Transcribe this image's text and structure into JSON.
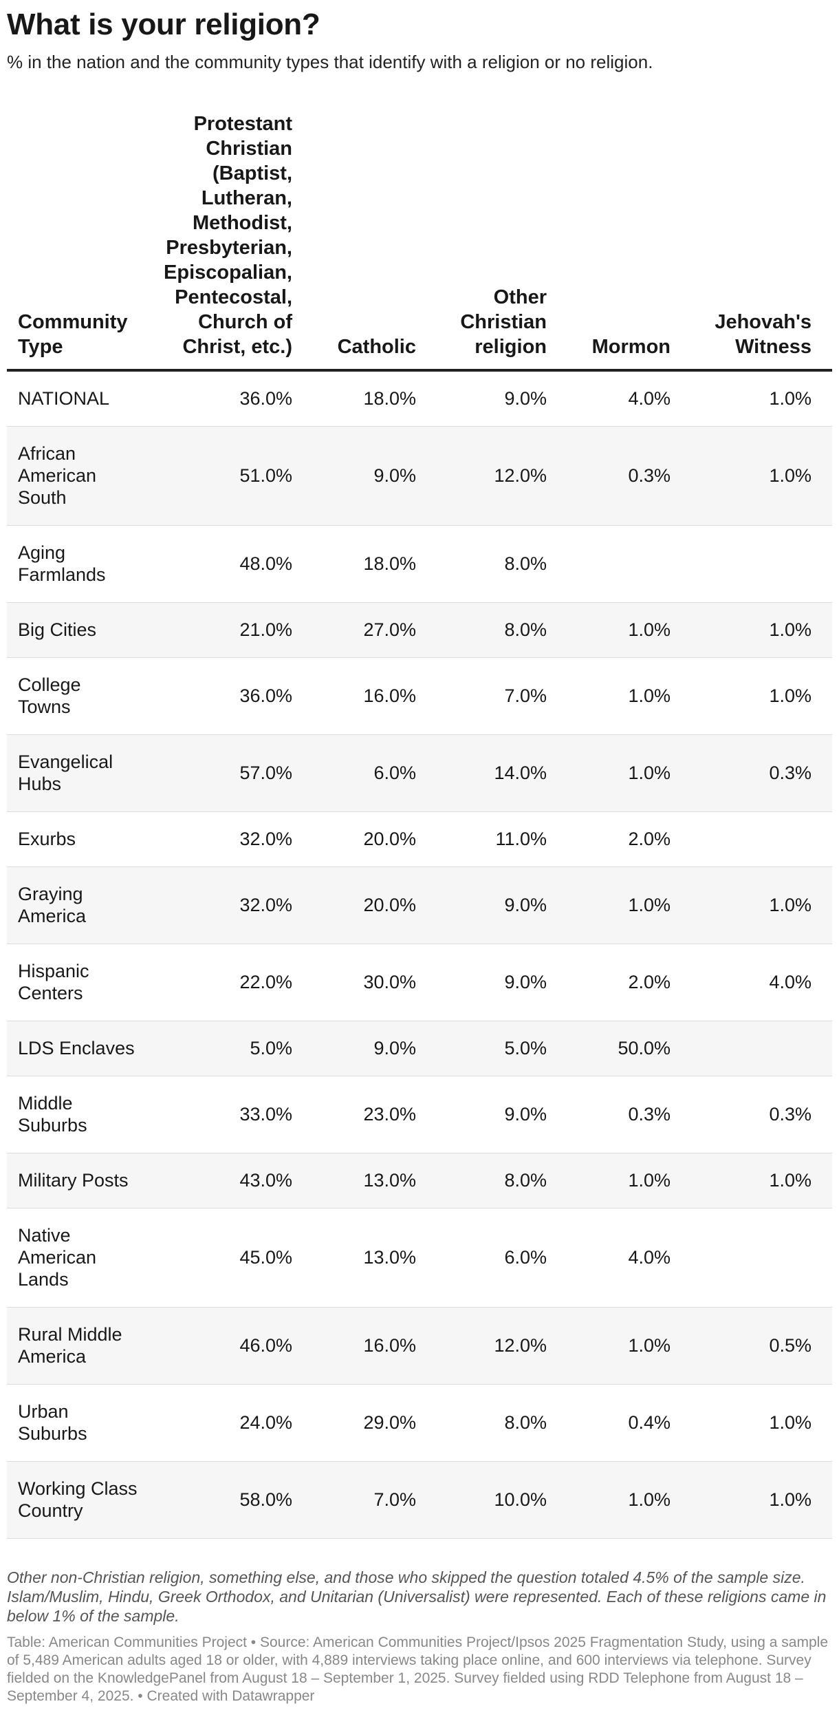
{
  "title": "What is your religion?",
  "subtitle": "% in the nation and the community types that identify with a religion or no religion.",
  "chart_data": {
    "type": "table",
    "columns": [
      "Community Type",
      "Protestant Christian (Baptist, Lutheran, Methodist, Presbyterian, Episcopalian, Pentecostal, Church of Christ, etc.)",
      "Catholic",
      "Other Christian religion",
      "Mormon",
      "Jehovah's Witness"
    ],
    "rows": [
      [
        "NATIONAL",
        "36.0%",
        "18.0%",
        "9.0%",
        "4.0%",
        "1.0%"
      ],
      [
        "African American South",
        "51.0%",
        "9.0%",
        "12.0%",
        "0.3%",
        "1.0%"
      ],
      [
        "Aging Farmlands",
        "48.0%",
        "18.0%",
        "8.0%",
        "",
        ""
      ],
      [
        "Big Cities",
        "21.0%",
        "27.0%",
        "8.0%",
        "1.0%",
        "1.0%"
      ],
      [
        "College Towns",
        "36.0%",
        "16.0%",
        "7.0%",
        "1.0%",
        "1.0%"
      ],
      [
        "Evangelical Hubs",
        "57.0%",
        "6.0%",
        "14.0%",
        "1.0%",
        "0.3%"
      ],
      [
        "Exurbs",
        "32.0%",
        "20.0%",
        "11.0%",
        "2.0%",
        ""
      ],
      [
        "Graying America",
        "32.0%",
        "20.0%",
        "9.0%",
        "1.0%",
        "1.0%"
      ],
      [
        "Hispanic Centers",
        "22.0%",
        "30.0%",
        "9.0%",
        "2.0%",
        "4.0%"
      ],
      [
        "LDS Enclaves",
        "5.0%",
        "9.0%",
        "5.0%",
        "50.0%",
        ""
      ],
      [
        "Middle Suburbs",
        "33.0%",
        "23.0%",
        "9.0%",
        "0.3%",
        "0.3%"
      ],
      [
        "Military Posts",
        "43.0%",
        "13.0%",
        "8.0%",
        "1.0%",
        "1.0%"
      ],
      [
        "Native American Lands",
        "45.0%",
        "13.0%",
        "6.0%",
        "4.0%",
        ""
      ],
      [
        "Rural Middle America",
        "46.0%",
        "16.0%",
        "12.0%",
        "1.0%",
        "0.5%"
      ],
      [
        "Urban Suburbs",
        "24.0%",
        "29.0%",
        "8.0%",
        "0.4%",
        "1.0%"
      ],
      [
        "Working Class Country",
        "58.0%",
        "7.0%",
        "10.0%",
        "1.0%",
        "1.0%"
      ]
    ]
  },
  "notes": "Other non-Christian religion, something else, and those who skipped the question totaled 4.5% of the sample size. Islam/Muslim, Hindu, Greek Orthodox, and Unitarian (Universalist) were represented. Each of these religions came in below 1% of the sample.",
  "footer": "Table: American Communities Project • Source: American Communities Project/Ipsos 2025 Fragmentation Study, using a sample of 5,489 American adults aged 18 or older, with 4,889 interviews taking place online, and 600 interviews via telephone. Survey fielded on the KnowledgePanel from August 18 – September 1, 2025. Survey fielded using RDD Telephone from August 18 – September 4, 2025. • Created with Datawrapper"
}
